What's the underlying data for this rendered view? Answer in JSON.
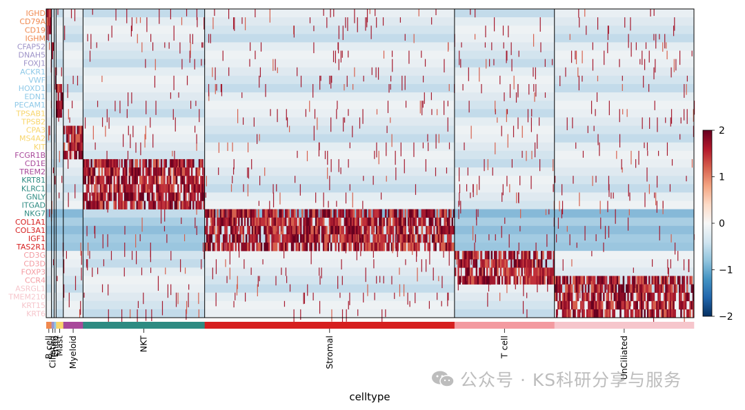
{
  "chart_data": {
    "type": "heatmap",
    "xlabel": "celltype",
    "colorbar": {
      "min": -2,
      "max": 2,
      "ticks": [
        "2",
        "1",
        "0",
        "−1",
        "−2"
      ],
      "colormap": "RdBu_r"
    },
    "genes": [
      {
        "name": "IGHD",
        "group": "B cell"
      },
      {
        "name": "CD79A",
        "group": "B cell"
      },
      {
        "name": "CD19",
        "group": "B cell"
      },
      {
        "name": "IGHM",
        "group": "B cell"
      },
      {
        "name": "CFAP52",
        "group": "Ciliated"
      },
      {
        "name": "DNAH5",
        "group": "Ciliated"
      },
      {
        "name": "FOXJ1",
        "group": "Ciliated"
      },
      {
        "name": "ACKR1",
        "group": "Endo"
      },
      {
        "name": "VWF",
        "group": "Endo"
      },
      {
        "name": "HOXD1",
        "group": "Endo"
      },
      {
        "name": "EDN1",
        "group": "Endo"
      },
      {
        "name": "PECAM1",
        "group": "Endo"
      },
      {
        "name": "TPSAB1",
        "group": "Mast"
      },
      {
        "name": "TPSB2",
        "group": "Mast"
      },
      {
        "name": "CPA3",
        "group": "Mast"
      },
      {
        "name": "MS4A2",
        "group": "Mast"
      },
      {
        "name": "KIT",
        "group": "Mast"
      },
      {
        "name": "FCGR1B",
        "group": "Myeloid"
      },
      {
        "name": "CD1E",
        "group": "Myeloid"
      },
      {
        "name": "TREM2",
        "group": "Myeloid"
      },
      {
        "name": "KRT81",
        "group": "NKT"
      },
      {
        "name": "KLRC1",
        "group": "NKT"
      },
      {
        "name": "GNLY",
        "group": "NKT"
      },
      {
        "name": "ITGAD",
        "group": "NKT"
      },
      {
        "name": "NKG7",
        "group": "NKT"
      },
      {
        "name": "COL1A1",
        "group": "Stromal"
      },
      {
        "name": "COL3A1",
        "group": "Stromal"
      },
      {
        "name": "IGF1",
        "group": "Stromal"
      },
      {
        "name": "TAS2R1",
        "group": "Stromal"
      },
      {
        "name": "CD3G",
        "group": "T cell"
      },
      {
        "name": "CD3D",
        "group": "T cell"
      },
      {
        "name": "FOXP3",
        "group": "T cell"
      },
      {
        "name": "CCR4",
        "group": "T cell"
      },
      {
        "name": "ASRGL1",
        "group": "UnCiliated"
      },
      {
        "name": "TMEM210",
        "group": "UnCiliated"
      },
      {
        "name": "KRT15",
        "group": "UnCiliated"
      },
      {
        "name": "KRT6",
        "group": "UnCiliated"
      }
    ],
    "celltypes": [
      {
        "name": "B cell",
        "color": "#f0884e",
        "share": 0.0092,
        "rows": [
          0,
          4
        ]
      },
      {
        "name": "Ciliated",
        "color": "#9e93c8",
        "share": 0.0046,
        "rows": [
          4,
          6
        ]
      },
      {
        "name": "Endo",
        "color": "#8fc9e8",
        "share": 0.0034,
        "rows": [
          7,
          9
        ]
      },
      {
        "name": "Mast",
        "color": "#f8d66c",
        "share": 0.0126,
        "rows": [
          9,
          13
        ]
      },
      {
        "name": "Myeloid",
        "color": "#a8489a",
        "share": 0.0344,
        "rows": [
          14,
          18
        ]
      },
      {
        "name": "NKT",
        "color": "#2e8b82",
        "share": 0.2122,
        "rows": [
          18,
          24
        ]
      },
      {
        "name": "Stromal",
        "color": "#d61f1f",
        "share": 0.4359,
        "rows": [
          24,
          29
        ]
      },
      {
        "name": "T cell",
        "color": "#f39aa0",
        "share": 0.1743,
        "rows": [
          29,
          33
        ]
      },
      {
        "name": "UnCiliated",
        "color": "#f6c6cc",
        "share": 0.2434,
        "rows": [
          32,
          37
        ]
      }
    ]
  },
  "watermark": {
    "text": "公众号 · KS科研分享与服务",
    "icon": "wechat-icon"
  }
}
